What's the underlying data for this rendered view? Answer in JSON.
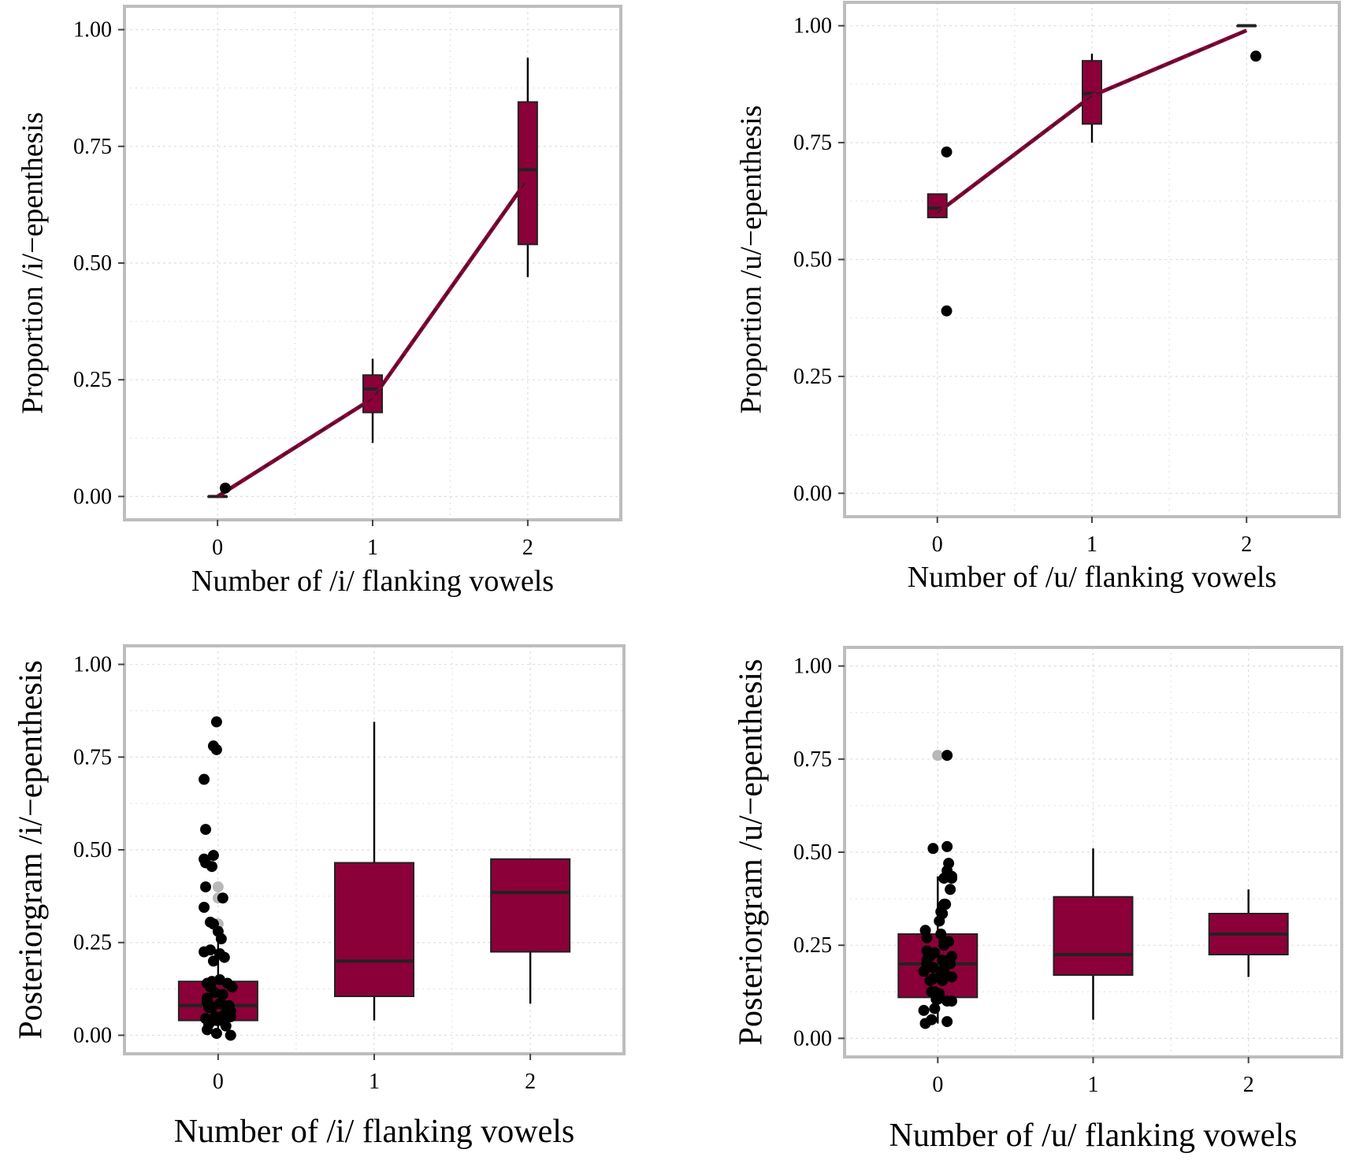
{
  "colors": {
    "box_fill": "#8b0038",
    "fit_line": "#8b0038",
    "fit_dash": "#222222",
    "point": "#000000",
    "outlier_point": "#b8b8b8",
    "panel_border": "#bdbdbd",
    "grid": "#dedede"
  },
  "chart_data": [
    {
      "id": "top-left",
      "type": "box",
      "xlabel": "Number of /i/ flanking vowels",
      "ylabel": "Proportion /i/−epenthesis",
      "categories": [
        "0",
        "1",
        "2"
      ],
      "yticks": [
        "0.00",
        "0.25",
        "0.50",
        "0.75",
        "1.00"
      ],
      "ylim": [
        -0.05,
        1.05
      ],
      "xlim": [
        -0.6,
        2.6
      ],
      "grid": true,
      "boxes": [
        {
          "x": 0,
          "q1": 0.0,
          "median": 0.0,
          "q3": 0.0,
          "whisker_low": 0.0,
          "whisker_high": 0.0
        },
        {
          "x": 1,
          "q1": 0.18,
          "median": 0.23,
          "q3": 0.26,
          "whisker_low": 0.115,
          "whisker_high": 0.295
        },
        {
          "x": 2,
          "q1": 0.54,
          "median": 0.7,
          "q3": 0.845,
          "whisker_low": 0.47,
          "whisker_high": 0.94
        }
      ],
      "points": [
        {
          "x": 0.05,
          "y": 0.018
        }
      ],
      "outliers": [],
      "fit_line": [
        {
          "x": 0,
          "y": 0.0
        },
        {
          "x": 1,
          "y": 0.21
        },
        {
          "x": 2,
          "y": 0.68
        }
      ]
    },
    {
      "id": "top-right",
      "type": "box",
      "xlabel": "Number of /u/ flanking vowels",
      "ylabel": "Proportion /u/−epenthesis",
      "categories": [
        "0",
        "1",
        "2"
      ],
      "yticks": [
        "0.00",
        "0.25",
        "0.50",
        "0.75",
        "1.00"
      ],
      "ylim": [
        -0.05,
        1.05
      ],
      "xlim": [
        -0.6,
        2.6
      ],
      "grid": true,
      "boxes": [
        {
          "x": 0,
          "q1": 0.59,
          "median": 0.61,
          "q3": 0.64,
          "whisker_low": 0.59,
          "whisker_high": 0.64
        },
        {
          "x": 1,
          "q1": 0.79,
          "median": 0.855,
          "q3": 0.925,
          "whisker_low": 0.75,
          "whisker_high": 0.94
        },
        {
          "x": 2,
          "q1": 1.0,
          "median": 1.0,
          "q3": 1.0,
          "whisker_low": 1.0,
          "whisker_high": 1.0
        }
      ],
      "points": [
        {
          "x": 0.06,
          "y": 0.73
        },
        {
          "x": 0.06,
          "y": 0.39
        },
        {
          "x": 2.06,
          "y": 0.935
        }
      ],
      "outliers": [],
      "fit_line": [
        {
          "x": 0,
          "y": 0.6
        },
        {
          "x": 1,
          "y": 0.85
        },
        {
          "x": 2,
          "y": 0.99
        }
      ]
    },
    {
      "id": "bottom-left",
      "type": "box",
      "xlabel": "Number of /i/ flanking vowels",
      "ylabel": "Posteriorgram /i/−epenthesis",
      "categories": [
        "0",
        "1",
        "2"
      ],
      "yticks": [
        "0.00",
        "0.25",
        "0.50",
        "0.75",
        "1.00"
      ],
      "ylim": [
        -0.05,
        1.05
      ],
      "xlim": [
        -0.6,
        2.6
      ],
      "grid": true,
      "boxes": [
        {
          "x": 0,
          "q1": 0.04,
          "median": 0.08,
          "q3": 0.145,
          "whisker_low": 0.0,
          "whisker_high": 0.26
        },
        {
          "x": 1,
          "q1": 0.105,
          "median": 0.2,
          "q3": 0.465,
          "whisker_low": 0.04,
          "whisker_high": 0.845
        },
        {
          "x": 2,
          "q1": 0.225,
          "median": 0.385,
          "q3": 0.475,
          "whisker_low": 0.085,
          "whisker_high": 0.475
        }
      ],
      "points": [
        {
          "x": -0.08,
          "y": 0.4
        },
        {
          "x": 0.03,
          "y": 0.37
        },
        {
          "x": -0.03,
          "y": 0.3
        },
        {
          "x": 0.02,
          "y": 0.26
        },
        {
          "x": -0.09,
          "y": 0.225
        },
        {
          "x": -0.07,
          "y": 0.14
        },
        {
          "x": 0.06,
          "y": 0.14
        },
        {
          "x": -0.05,
          "y": 0.13
        },
        {
          "x": 0.03,
          "y": 0.11
        },
        {
          "x": -0.07,
          "y": 0.09
        },
        {
          "x": 0.01,
          "y": 0.085
        },
        {
          "x": 0.07,
          "y": 0.08
        },
        {
          "x": -0.04,
          "y": 0.075
        },
        {
          "x": 0.05,
          "y": 0.06
        },
        {
          "x": -0.02,
          "y": 0.05
        },
        {
          "x": 0.08,
          "y": 0.05
        },
        {
          "x": -0.08,
          "y": 0.045
        },
        {
          "x": 0.02,
          "y": 0.04
        },
        {
          "x": -0.06,
          "y": 0.03
        },
        {
          "x": 0.05,
          "y": 0.025
        },
        {
          "x": -0.07,
          "y": 0.015
        },
        {
          "x": -0.01,
          "y": 0.005
        },
        {
          "x": 0.08,
          "y": 0.0
        },
        {
          "x": -0.01,
          "y": 0.845
        },
        {
          "x": -0.03,
          "y": 0.78
        },
        {
          "x": -0.01,
          "y": 0.77
        },
        {
          "x": -0.09,
          "y": 0.69
        },
        {
          "x": -0.08,
          "y": 0.555
        },
        {
          "x": -0.03,
          "y": 0.485
        },
        {
          "x": -0.04,
          "y": 0.455
        },
        {
          "x": -0.09,
          "y": 0.345
        },
        {
          "x": 0.0,
          "y": 0.28
        },
        {
          "x": -0.05,
          "y": 0.23
        },
        {
          "x": 0.01,
          "y": 0.22
        },
        {
          "x": 0.04,
          "y": 0.21
        },
        {
          "x": -0.04,
          "y": 0.145
        },
        {
          "x": 0.01,
          "y": 0.15
        },
        {
          "x": 0.09,
          "y": 0.13
        },
        {
          "x": -0.07,
          "y": 0.1
        },
        {
          "x": -0.02,
          "y": 0.115
        },
        {
          "x": 0.02,
          "y": 0.085
        },
        {
          "x": -0.06,
          "y": 0.075
        },
        {
          "x": 0.08,
          "y": 0.065
        },
        {
          "x": 0.02,
          "y": 0.05
        },
        {
          "x": -0.01,
          "y": 0.04
        },
        {
          "x": -0.09,
          "y": 0.475
        },
        {
          "x": -0.08,
          "y": 0.465
        },
        {
          "x": -0.05,
          "y": 0.305
        },
        {
          "x": -0.03,
          "y": 0.2
        },
        {
          "x": -0.06,
          "y": 0.085
        }
      ],
      "outliers": [
        {
          "x": 0.0,
          "y": 0.4
        },
        {
          "x": 0.0,
          "y": 0.37
        },
        {
          "x": 0.0,
          "y": 0.3
        }
      ],
      "fit_line": []
    },
    {
      "id": "bottom-right",
      "type": "box",
      "xlabel": "Number of /u/ flanking vowels",
      "ylabel": "Posteriorgram /u/−epenthesis",
      "categories": [
        "0",
        "1",
        "2"
      ],
      "yticks": [
        "0.00",
        "0.25",
        "0.50",
        "0.75",
        "1.00"
      ],
      "ylim": [
        -0.05,
        1.05
      ],
      "xlim": [
        -0.6,
        2.6
      ],
      "grid": true,
      "boxes": [
        {
          "x": 0,
          "q1": 0.11,
          "median": 0.2,
          "q3": 0.28,
          "whisker_low": 0.04,
          "whisker_high": 0.435
        },
        {
          "x": 1,
          "q1": 0.17,
          "median": 0.225,
          "q3": 0.38,
          "whisker_low": 0.05,
          "whisker_high": 0.51
        },
        {
          "x": 2,
          "q1": 0.225,
          "median": 0.28,
          "q3": 0.335,
          "whisker_low": 0.165,
          "whisker_high": 0.4
        }
      ],
      "points": [
        {
          "x": 0.06,
          "y": 0.76
        },
        {
          "x": 0.09,
          "y": 0.435
        },
        {
          "x": 0.09,
          "y": 0.43
        },
        {
          "x": 0.05,
          "y": 0.36
        },
        {
          "x": 0.02,
          "y": 0.34
        },
        {
          "x": 0.07,
          "y": 0.26
        },
        {
          "x": 0.01,
          "y": 0.315
        },
        {
          "x": -0.02,
          "y": 0.23
        },
        {
          "x": -0.05,
          "y": 0.22
        },
        {
          "x": 0.03,
          "y": 0.21
        },
        {
          "x": -0.07,
          "y": 0.2
        },
        {
          "x": 0.08,
          "y": 0.2
        },
        {
          "x": -0.03,
          "y": 0.19
        },
        {
          "x": 0.05,
          "y": 0.17
        },
        {
          "x": -0.05,
          "y": 0.155
        },
        {
          "x": 0.01,
          "y": 0.12
        },
        {
          "x": 0.06,
          "y": 0.1
        },
        {
          "x": -0.01,
          "y": 0.105
        },
        {
          "x": 0.09,
          "y": 0.1
        },
        {
          "x": -0.02,
          "y": 0.08
        },
        {
          "x": 0.06,
          "y": 0.045
        },
        {
          "x": -0.08,
          "y": 0.04
        },
        {
          "x": -0.03,
          "y": 0.51
        },
        {
          "x": 0.06,
          "y": 0.515
        },
        {
          "x": 0.07,
          "y": 0.47
        },
        {
          "x": 0.06,
          "y": 0.45
        },
        {
          "x": 0.04,
          "y": 0.43
        },
        {
          "x": 0.04,
          "y": 0.36
        },
        {
          "x": -0.08,
          "y": 0.29
        },
        {
          "x": 0.02,
          "y": 0.28
        },
        {
          "x": 0.04,
          "y": 0.25
        },
        {
          "x": -0.07,
          "y": 0.235
        },
        {
          "x": -0.05,
          "y": 0.22
        },
        {
          "x": 0.09,
          "y": 0.22
        },
        {
          "x": -0.07,
          "y": 0.21
        },
        {
          "x": 0.05,
          "y": 0.195
        },
        {
          "x": -0.09,
          "y": 0.18
        },
        {
          "x": 0.02,
          "y": 0.18
        },
        {
          "x": -0.03,
          "y": 0.16
        },
        {
          "x": 0.03,
          "y": 0.155
        },
        {
          "x": -0.04,
          "y": 0.125
        },
        {
          "x": 0.0,
          "y": 0.105
        },
        {
          "x": -0.02,
          "y": 0.125
        },
        {
          "x": -0.09,
          "y": 0.075
        },
        {
          "x": -0.04,
          "y": 0.05
        },
        {
          "x": 0.08,
          "y": 0.4
        },
        {
          "x": 0.03,
          "y": 0.335
        },
        {
          "x": -0.07,
          "y": 0.27
        },
        {
          "x": 0.04,
          "y": 0.26
        },
        {
          "x": -0.06,
          "y": 0.225
        },
        {
          "x": 0.09,
          "y": 0.165
        }
      ],
      "outliers": [
        {
          "x": 0.0,
          "y": 0.76
        }
      ],
      "fit_line": []
    }
  ]
}
